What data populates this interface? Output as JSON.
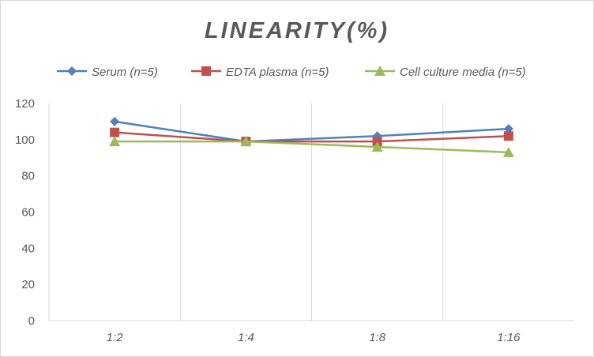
{
  "chart_data": {
    "type": "line",
    "title": "LINEARITY(%)",
    "categories": [
      "1:2",
      "1:4",
      "1:8",
      "1:16"
    ],
    "series": [
      {
        "name": "Serum (n=5)",
        "values": [
          110,
          99,
          102,
          106
        ],
        "color": "#4f81bd",
        "marker": "diamond"
      },
      {
        "name": "EDTA plasma (n=5)",
        "values": [
          104,
          99,
          99,
          102
        ],
        "color": "#c0504d",
        "marker": "square"
      },
      {
        "name": "Cell culture media (n=5)",
        "values": [
          99,
          99,
          96,
          93
        ],
        "color": "#9bbb59",
        "marker": "triangle"
      }
    ],
    "ylim": [
      0,
      120
    ],
    "yticks": [
      0,
      20,
      40,
      60,
      80,
      100,
      120
    ],
    "ytick_labels": [
      "0",
      "20",
      "40",
      "60",
      "80",
      "100",
      "120"
    ],
    "grid": "vertical category dividers",
    "legend": "top"
  }
}
